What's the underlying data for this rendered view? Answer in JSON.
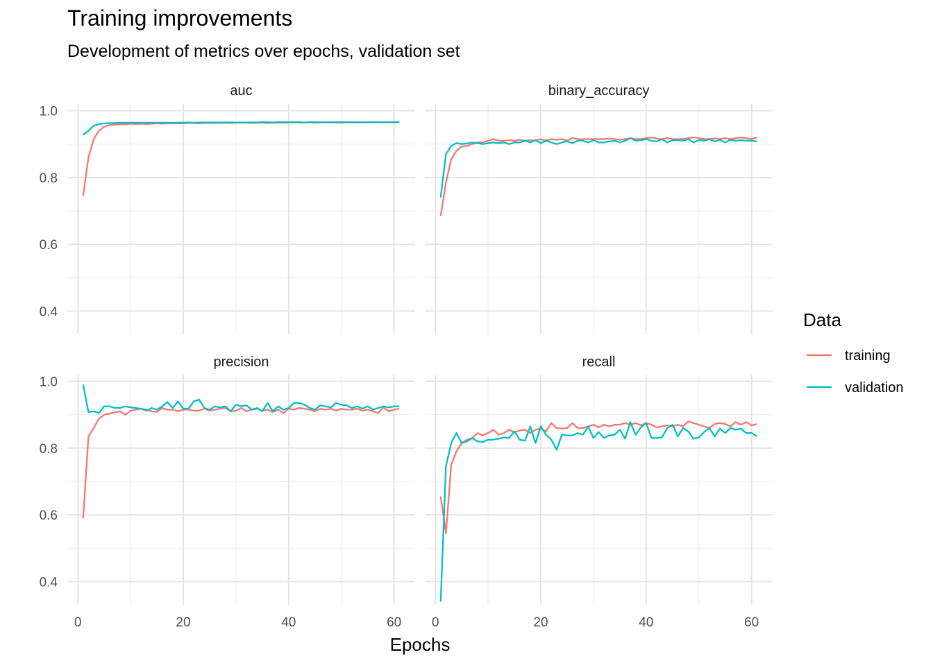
{
  "title": "Training improvements",
  "subtitle": "Development of metrics over epochs, validation set",
  "chart_data": {
    "type": "line",
    "xlabel": "Epochs",
    "ylabel": "",
    "grid": true,
    "legend": {
      "title": "Data",
      "placement": "right",
      "entries": [
        "training",
        "validation"
      ]
    },
    "colors": {
      "training": "#F8766D",
      "validation": "#00BFC4"
    },
    "x_ticks": [
      0,
      20,
      40,
      60
    ],
    "y_ticks": [
      0.4,
      0.6,
      0.8,
      1.0
    ],
    "y_tick_labels": [
      "0.4",
      "0.6",
      "0.8",
      "1.0"
    ],
    "facets": [
      {
        "name": "auc",
        "x": [
          1,
          2,
          3,
          4,
          5,
          6,
          7,
          8,
          9,
          10,
          11,
          12,
          13,
          14,
          15,
          16,
          17,
          18,
          19,
          20,
          21,
          22,
          23,
          24,
          25,
          26,
          27,
          28,
          29,
          30,
          31,
          32,
          33,
          34,
          35,
          36,
          37,
          38,
          39,
          40,
          41,
          42,
          43,
          44,
          45,
          46,
          47,
          48,
          49,
          50,
          51,
          52,
          53,
          54,
          55,
          56,
          57,
          58,
          59,
          60,
          61
        ],
        "series": [
          {
            "name": "training",
            "values": [
              0.745,
              0.86,
              0.915,
              0.94,
              0.952,
              0.957,
              0.958,
              0.96,
              0.959,
              0.961,
              0.96,
              0.961,
              0.96,
              0.961,
              0.962,
              0.961,
              0.962,
              0.962,
              0.962,
              0.962,
              0.963,
              0.963,
              0.962,
              0.963,
              0.963,
              0.963,
              0.963,
              0.964,
              0.963,
              0.964,
              0.964,
              0.964,
              0.963,
              0.964,
              0.964,
              0.963,
              0.964,
              0.964,
              0.964,
              0.965,
              0.965,
              0.964,
              0.965,
              0.965,
              0.964,
              0.965,
              0.965,
              0.965,
              0.965,
              0.964,
              0.965,
              0.965,
              0.965,
              0.965,
              0.965,
              0.965,
              0.966,
              0.965,
              0.966,
              0.965,
              0.966
            ]
          },
          {
            "name": "validation",
            "values": [
              0.928,
              0.94,
              0.955,
              0.96,
              0.962,
              0.963,
              0.963,
              0.964,
              0.964,
              0.964,
              0.964,
              0.964,
              0.964,
              0.964,
              0.964,
              0.964,
              0.964,
              0.964,
              0.964,
              0.964,
              0.965,
              0.964,
              0.965,
              0.965,
              0.965,
              0.965,
              0.965,
              0.965,
              0.965,
              0.965,
              0.965,
              0.965,
              0.965,
              0.965,
              0.966,
              0.966,
              0.965,
              0.966,
              0.966,
              0.966,
              0.966,
              0.966,
              0.965,
              0.966,
              0.966,
              0.966,
              0.966,
              0.966,
              0.966,
              0.966,
              0.966,
              0.966,
              0.966,
              0.966,
              0.966,
              0.966,
              0.966,
              0.966,
              0.966,
              0.966,
              0.967
            ]
          }
        ]
      },
      {
        "name": "binary_accuracy",
        "x": [
          1,
          2,
          3,
          4,
          5,
          6,
          7,
          8,
          9,
          10,
          11,
          12,
          13,
          14,
          15,
          16,
          17,
          18,
          19,
          20,
          21,
          22,
          23,
          24,
          25,
          26,
          27,
          28,
          29,
          30,
          31,
          32,
          33,
          34,
          35,
          36,
          37,
          38,
          39,
          40,
          41,
          42,
          43,
          44,
          45,
          46,
          47,
          48,
          49,
          50,
          51,
          52,
          53,
          54,
          55,
          56,
          57,
          58,
          59,
          60,
          61
        ],
        "series": [
          {
            "name": "training",
            "values": [
              0.685,
              0.785,
              0.855,
              0.88,
              0.893,
              0.895,
              0.9,
              0.905,
              0.905,
              0.91,
              0.915,
              0.91,
              0.91,
              0.912,
              0.91,
              0.913,
              0.91,
              0.912,
              0.91,
              0.915,
              0.91,
              0.915,
              0.913,
              0.915,
              0.91,
              0.918,
              0.915,
              0.915,
              0.915,
              0.915,
              0.915,
              0.915,
              0.917,
              0.915,
              0.913,
              0.915,
              0.918,
              0.915,
              0.915,
              0.918,
              0.92,
              0.917,
              0.915,
              0.918,
              0.915,
              0.915,
              0.915,
              0.918,
              0.92,
              0.918,
              0.915,
              0.915,
              0.917,
              0.915,
              0.918,
              0.915,
              0.918,
              0.92,
              0.918,
              0.915,
              0.92
            ]
          },
          {
            "name": "validation",
            "values": [
              0.74,
              0.87,
              0.895,
              0.903,
              0.9,
              0.902,
              0.905,
              0.903,
              0.9,
              0.903,
              0.905,
              0.903,
              0.905,
              0.9,
              0.905,
              0.905,
              0.91,
              0.905,
              0.912,
              0.903,
              0.91,
              0.905,
              0.9,
              0.905,
              0.908,
              0.903,
              0.91,
              0.91,
              0.905,
              0.912,
              0.905,
              0.905,
              0.908,
              0.91,
              0.905,
              0.91,
              0.918,
              0.91,
              0.912,
              0.915,
              0.91,
              0.908,
              0.915,
              0.905,
              0.912,
              0.912,
              0.91,
              0.915,
              0.905,
              0.912,
              0.91,
              0.915,
              0.908,
              0.912,
              0.905,
              0.913,
              0.91,
              0.912,
              0.91,
              0.91,
              0.908
            ]
          }
        ]
      },
      {
        "name": "precision",
        "x": [
          1,
          2,
          3,
          4,
          5,
          6,
          7,
          8,
          9,
          10,
          11,
          12,
          13,
          14,
          15,
          16,
          17,
          18,
          19,
          20,
          21,
          22,
          23,
          24,
          25,
          26,
          27,
          28,
          29,
          30,
          31,
          32,
          33,
          34,
          35,
          36,
          37,
          38,
          39,
          40,
          41,
          42,
          43,
          44,
          45,
          46,
          47,
          48,
          49,
          50,
          51,
          52,
          53,
          54,
          55,
          56,
          57,
          58,
          59,
          60,
          61
        ],
        "series": [
          {
            "name": "training",
            "values": [
              0.59,
              0.835,
              0.86,
              0.888,
              0.9,
              0.903,
              0.907,
              0.91,
              0.9,
              0.912,
              0.915,
              0.918,
              0.915,
              0.91,
              0.908,
              0.92,
              0.915,
              0.915,
              0.91,
              0.915,
              0.915,
              0.912,
              0.912,
              0.918,
              0.912,
              0.915,
              0.918,
              0.92,
              0.91,
              0.912,
              0.92,
              0.91,
              0.915,
              0.918,
              0.912,
              0.915,
              0.908,
              0.915,
              0.905,
              0.918,
              0.915,
              0.92,
              0.918,
              0.915,
              0.91,
              0.918,
              0.915,
              0.918,
              0.912,
              0.918,
              0.915,
              0.915,
              0.918,
              0.912,
              0.915,
              0.91,
              0.905,
              0.922,
              0.91,
              0.915,
              0.918
            ]
          },
          {
            "name": "validation",
            "values": [
              0.99,
              0.908,
              0.91,
              0.905,
              0.925,
              0.925,
              0.92,
              0.92,
              0.925,
              0.922,
              0.92,
              0.918,
              0.912,
              0.92,
              0.915,
              0.925,
              0.938,
              0.92,
              0.94,
              0.918,
              0.918,
              0.94,
              0.945,
              0.92,
              0.915,
              0.925,
              0.922,
              0.925,
              0.91,
              0.93,
              0.925,
              0.928,
              0.915,
              0.92,
              0.91,
              0.935,
              0.91,
              0.925,
              0.915,
              0.92,
              0.935,
              0.935,
              0.93,
              0.92,
              0.915,
              0.928,
              0.925,
              0.922,
              0.935,
              0.93,
              0.928,
              0.92,
              0.925,
              0.918,
              0.925,
              0.915,
              0.92,
              0.925,
              0.922,
              0.925,
              0.925
            ]
          }
        ]
      },
      {
        "name": "recall",
        "x": [
          1,
          2,
          3,
          4,
          5,
          6,
          7,
          8,
          9,
          10,
          11,
          12,
          13,
          14,
          15,
          16,
          17,
          18,
          19,
          20,
          21,
          22,
          23,
          24,
          25,
          26,
          27,
          28,
          29,
          30,
          31,
          32,
          33,
          34,
          35,
          36,
          37,
          38,
          39,
          40,
          41,
          42,
          43,
          44,
          45,
          46,
          47,
          48,
          49,
          50,
          51,
          52,
          53,
          54,
          55,
          56,
          57,
          58,
          59,
          60,
          61
        ],
        "series": [
          {
            "name": "training",
            "values": [
              0.655,
              0.545,
              0.75,
              0.79,
              0.815,
              0.825,
              0.83,
              0.845,
              0.838,
              0.845,
              0.855,
              0.84,
              0.845,
              0.855,
              0.848,
              0.852,
              0.855,
              0.845,
              0.855,
              0.858,
              0.85,
              0.875,
              0.86,
              0.858,
              0.86,
              0.875,
              0.86,
              0.86,
              0.865,
              0.87,
              0.862,
              0.87,
              0.865,
              0.87,
              0.87,
              0.875,
              0.87,
              0.875,
              0.868,
              0.875,
              0.87,
              0.862,
              0.865,
              0.868,
              0.865,
              0.87,
              0.865,
              0.88,
              0.875,
              0.87,
              0.865,
              0.86,
              0.872,
              0.875,
              0.872,
              0.865,
              0.878,
              0.87,
              0.878,
              0.868,
              0.872
            ]
          },
          {
            "name": "validation",
            "values": [
              0.34,
              0.745,
              0.815,
              0.845,
              0.815,
              0.82,
              0.83,
              0.82,
              0.818,
              0.825,
              0.825,
              0.828,
              0.832,
              0.83,
              0.85,
              0.825,
              0.822,
              0.865,
              0.815,
              0.865,
              0.84,
              0.825,
              0.795,
              0.84,
              0.838,
              0.838,
              0.845,
              0.84,
              0.865,
              0.83,
              0.848,
              0.83,
              0.838,
              0.84,
              0.855,
              0.828,
              0.878,
              0.84,
              0.862,
              0.875,
              0.83,
              0.83,
              0.832,
              0.86,
              0.87,
              0.835,
              0.86,
              0.85,
              0.828,
              0.832,
              0.848,
              0.86,
              0.835,
              0.858,
              0.845,
              0.86,
              0.855,
              0.858,
              0.845,
              0.845,
              0.835
            ]
          }
        ]
      }
    ]
  }
}
